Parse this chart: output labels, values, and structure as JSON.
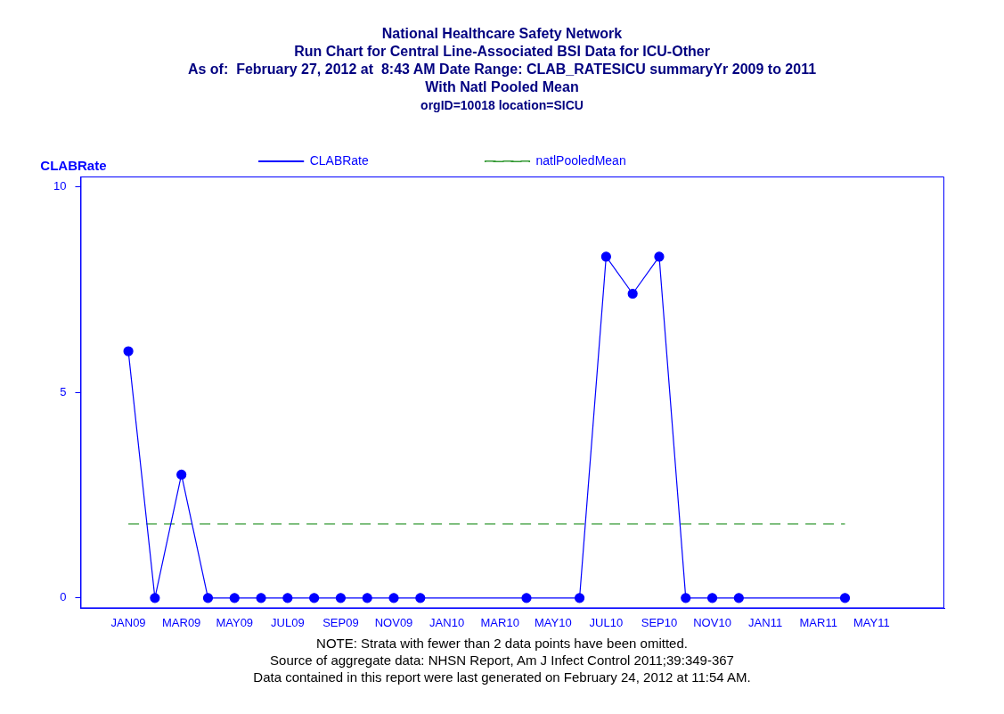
{
  "chart_data": {
    "type": "line",
    "title": "National Healthcare Safety Network",
    "subtitle": "Run Chart for Central Line-Associated BSI Data for ICU-Other\nAs of:  February 27, 2012 at  8:43 AM Date Range: CLAB_RATESICU summaryYr 2009 to 2011\nWith Natl Pooled Mean\norgID=10018 location=SICU",
    "ylabel": "CLABRate",
    "xlim": [
      "2008-11-07",
      "2011-07-24"
    ],
    "xticks": [
      {
        "value": "2009-01",
        "label": "JAN09"
      },
      {
        "value": "2009-03",
        "label": "MAR09"
      },
      {
        "value": "2009-05",
        "label": "MAY09"
      },
      {
        "value": "2009-07",
        "label": "JUL09"
      },
      {
        "value": "2009-09",
        "label": "SEP09"
      },
      {
        "value": "2009-11",
        "label": "NOV09"
      },
      {
        "value": "2010-01",
        "label": "JAN10"
      },
      {
        "value": "2010-03",
        "label": "MAR10"
      },
      {
        "value": "2010-05",
        "label": "MAY10"
      },
      {
        "value": "2010-07",
        "label": "JUL10"
      },
      {
        "value": "2010-09",
        "label": "SEP10"
      },
      {
        "value": "2010-11",
        "label": "NOV10"
      },
      {
        "value": "2011-01",
        "label": "JAN11"
      },
      {
        "value": "2011-03",
        "label": "MAR11"
      },
      {
        "value": "2011-05",
        "label": "MAY11"
      }
    ],
    "ylim": [
      -0.25,
      10.25
    ],
    "yticks": [
      0,
      5,
      10
    ],
    "legend": "top left",
    "series": [
      {
        "name": "CLABRate",
        "color": "#0000ff",
        "marker": "circle",
        "line_style": "solid",
        "x": [
          "2009-01",
          "2009-02",
          "2009-03",
          "2009-04",
          "2009-05",
          "2009-06",
          "2009-07",
          "2009-08",
          "2009-09",
          "2009-10",
          "2009-11",
          "2009-12",
          "2010-04",
          "2010-06",
          "2010-07",
          "2010-08",
          "2010-09",
          "2010-10",
          "2010-11",
          "2010-12",
          "2011-04"
        ],
        "values": [
          6,
          0,
          3,
          0,
          0,
          0,
          0,
          0,
          0,
          0,
          0,
          0,
          0,
          0,
          8.3,
          7.4,
          8.3,
          0,
          0,
          0,
          0
        ]
      },
      {
        "name": "natlPooledMean",
        "color": "#339933",
        "marker": "none",
        "line_style": "dashed",
        "x": [
          "2009-01",
          "2011-04"
        ],
        "values": [
          1.8,
          1.8
        ]
      }
    ],
    "annotations": [
      "NOTE: Strata with fewer than 2 data points have been omitted.",
      "Source of aggregate data: NHSN Report, Am J Infect Control 2011;39:349-367",
      "Data contained in this report were last generated on February 24, 2012 at 11:54 AM."
    ]
  }
}
